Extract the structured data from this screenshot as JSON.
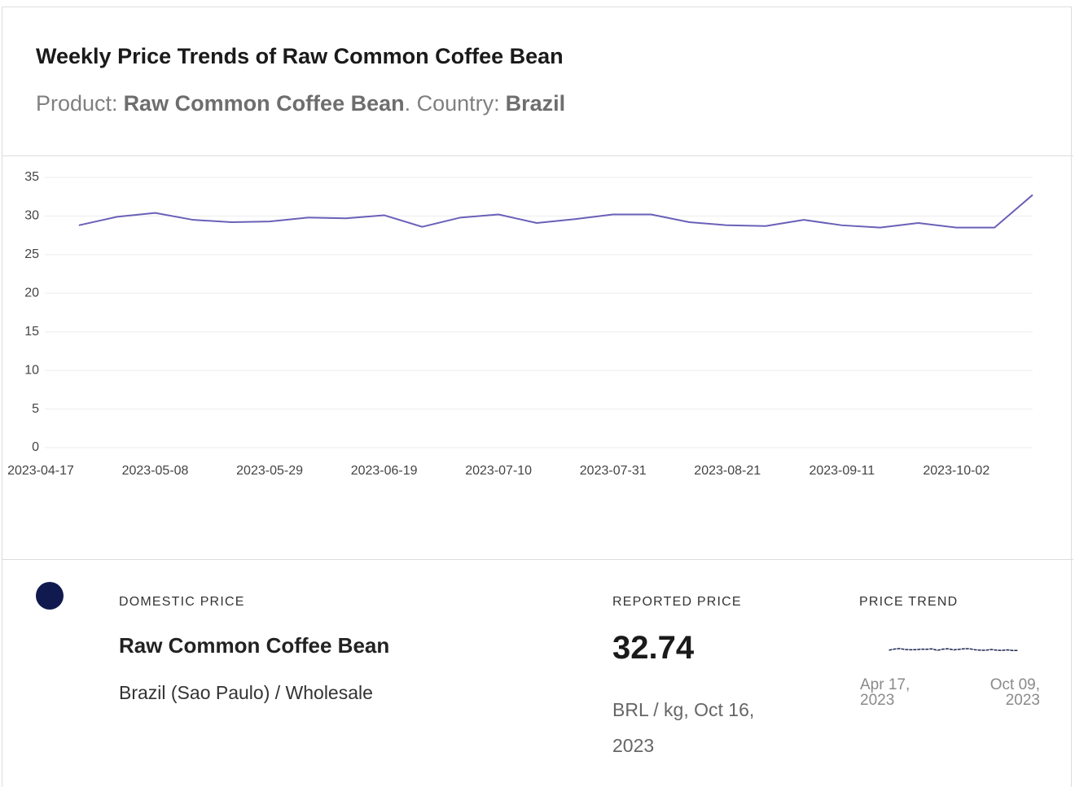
{
  "chart_data": {
    "type": "line",
    "title": "Weekly Price Trends of Raw Common Coffee Bean",
    "subtitle": [
      "Product:",
      "Raw Common Coffee Bean",
      ". Country:",
      "Brazil"
    ],
    "categories": [
      "2023-04-17",
      null,
      null,
      "2023-05-08",
      null,
      null,
      "2023-05-29",
      null,
      null,
      "2023-06-19",
      null,
      null,
      "2023-07-10",
      null,
      null,
      "2023-07-31",
      null,
      null,
      "2023-08-21",
      null,
      null,
      "2023-09-11",
      null,
      null,
      "2023-10-02",
      null,
      null
    ],
    "series": [
      {
        "name": "Raw Common Coffee Bean",
        "color": "#6a60b8",
        "values": [
          null,
          28.8,
          29.9,
          30.4,
          29.5,
          29.2,
          29.3,
          29.8,
          29.7,
          30.1,
          28.6,
          29.8,
          30.2,
          29.1,
          29.6,
          30.2,
          30.2,
          29.2,
          28.8,
          28.7,
          29.5,
          28.8,
          28.5,
          29.1,
          28.5,
          28.5,
          32.74
        ]
      }
    ],
    "ylim": [
      0,
      35
    ],
    "yticks": [
      0,
      5,
      10,
      15,
      20,
      25,
      30,
      35
    ],
    "grid": true
  },
  "details": {
    "marker_color": "#101a4e",
    "label": "DOMESTIC PRICE",
    "product": "Raw Common Coffee Bean",
    "market": "Brazil (Sao Paulo) / Wholesale",
    "reported_label": "REPORTED PRICE",
    "price": 32.74,
    "unit": "BRL / kg, Oct 16, 2023",
    "trend_label": "PRICE TREND",
    "trend_color": "#1a2350",
    "trend_start": "Apr 17, 2023",
    "trend_end": "Oct 09, 2023"
  }
}
